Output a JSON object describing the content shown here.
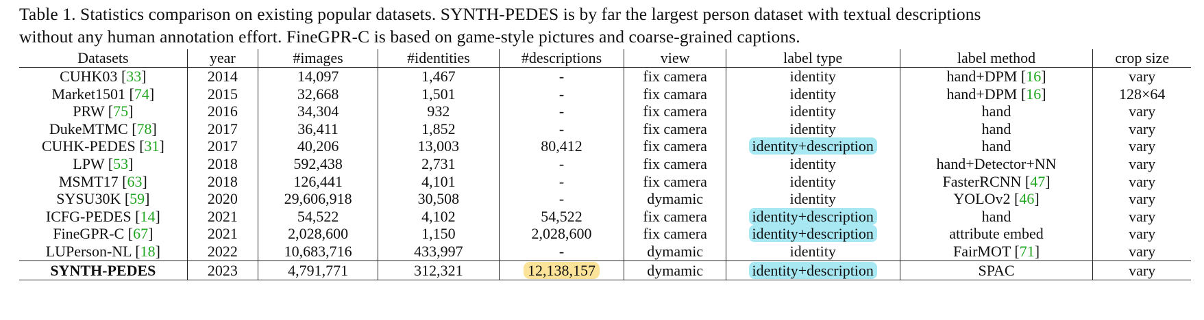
{
  "caption": {
    "line1": "Table 1. Statistics comparison on existing popular datasets. SYNTH-PEDES is by far the largest person dataset with textual descriptions",
    "line2": "without any human annotation effort. FineGPR-C is based on game-style pictures and coarse-grained captions."
  },
  "table": {
    "headers": [
      "Datasets",
      "year",
      "#images",
      "#identities",
      "#descriptions",
      "view",
      "label type",
      "label method",
      "crop size"
    ],
    "rows": [
      {
        "name": "CUHK03",
        "ref": "33",
        "year": "2014",
        "images": "14,097",
        "identities": "1,467",
        "descriptions": "-",
        "view": "fix camera",
        "label_type": "identity",
        "label_method": "hand+DPM",
        "method_ref": "16",
        "crop": "vary"
      },
      {
        "name": "Market1501",
        "ref": "74",
        "year": "2015",
        "images": "32,668",
        "identities": "1,501",
        "descriptions": "-",
        "view": "fix camara",
        "label_type": "identity",
        "label_method": "hand+DPM",
        "method_ref": "16",
        "crop": "128×64"
      },
      {
        "name": "PRW",
        "ref": "75",
        "year": "2016",
        "images": "34,304",
        "identities": "932",
        "descriptions": "-",
        "view": "fix camera",
        "label_type": "identity",
        "label_method": "hand",
        "method_ref": "",
        "crop": "vary"
      },
      {
        "name": "DukeMTMC",
        "ref": "78",
        "year": "2017",
        "images": "36,411",
        "identities": "1,852",
        "descriptions": "-",
        "view": "fix camera",
        "label_type": "identity",
        "label_method": "hand",
        "method_ref": "",
        "crop": "vary"
      },
      {
        "name": "CUHK-PEDES",
        "ref": "31",
        "year": "2017",
        "images": "40,206",
        "identities": "13,003",
        "descriptions": "80,412",
        "view": "fix camera",
        "label_type": "identity+description",
        "label_method": "hand",
        "method_ref": "",
        "crop": "vary"
      },
      {
        "name": "LPW",
        "ref": "53",
        "year": "2018",
        "images": "592,438",
        "identities": "2,731",
        "descriptions": "-",
        "view": "fix camera",
        "label_type": "identity",
        "label_method": "hand+Detector+NN",
        "method_ref": "",
        "crop": "vary"
      },
      {
        "name": "MSMT17",
        "ref": "63",
        "year": "2018",
        "images": "126,441",
        "identities": "4,101",
        "descriptions": "-",
        "view": "fix camera",
        "label_type": "identity",
        "label_method": "FasterRCNN",
        "method_ref": "47",
        "crop": "vary"
      },
      {
        "name": "SYSU30K",
        "ref": "59",
        "year": "2020",
        "images": "29,606,918",
        "identities": "30,508",
        "descriptions": "-",
        "view": "dymamic",
        "label_type": "identity",
        "label_method": "YOLOv2",
        "method_ref": "46",
        "crop": "vary"
      },
      {
        "name": "ICFG-PEDES",
        "ref": "14",
        "year": "2021",
        "images": "54,522",
        "identities": "4,102",
        "descriptions": "54,522",
        "view": "fix camera",
        "label_type": "identity+description",
        "label_method": "hand",
        "method_ref": "",
        "crop": "vary"
      },
      {
        "name": "FineGPR-C",
        "ref": "67",
        "year": "2021",
        "images": "2,028,600",
        "identities": "1,150",
        "descriptions": "2,028,600",
        "view": "fix camera",
        "label_type": "identity+description",
        "label_method": "attribute embed",
        "method_ref": "",
        "crop": "vary"
      },
      {
        "name": "LUPerson-NL",
        "ref": "18",
        "year": "2022",
        "images": "10,683,716",
        "identities": "433,997",
        "descriptions": "-",
        "view": "dymamic",
        "label_type": "identity",
        "label_method": "FairMOT",
        "method_ref": "71",
        "crop": "vary"
      },
      {
        "name": "SYNTH-PEDES",
        "ref": "",
        "year": "2023",
        "images": "4,791,771",
        "identities": "312,321",
        "descriptions": "12,138,157",
        "view": "dymamic",
        "label_type": "identity+description",
        "label_method": "SPAC",
        "method_ref": "",
        "crop": "vary"
      }
    ]
  },
  "colors": {
    "ref_color": "#1fa51f",
    "highlight_blue": "#a8e8f2",
    "highlight_yellow": "#fbe49a"
  }
}
